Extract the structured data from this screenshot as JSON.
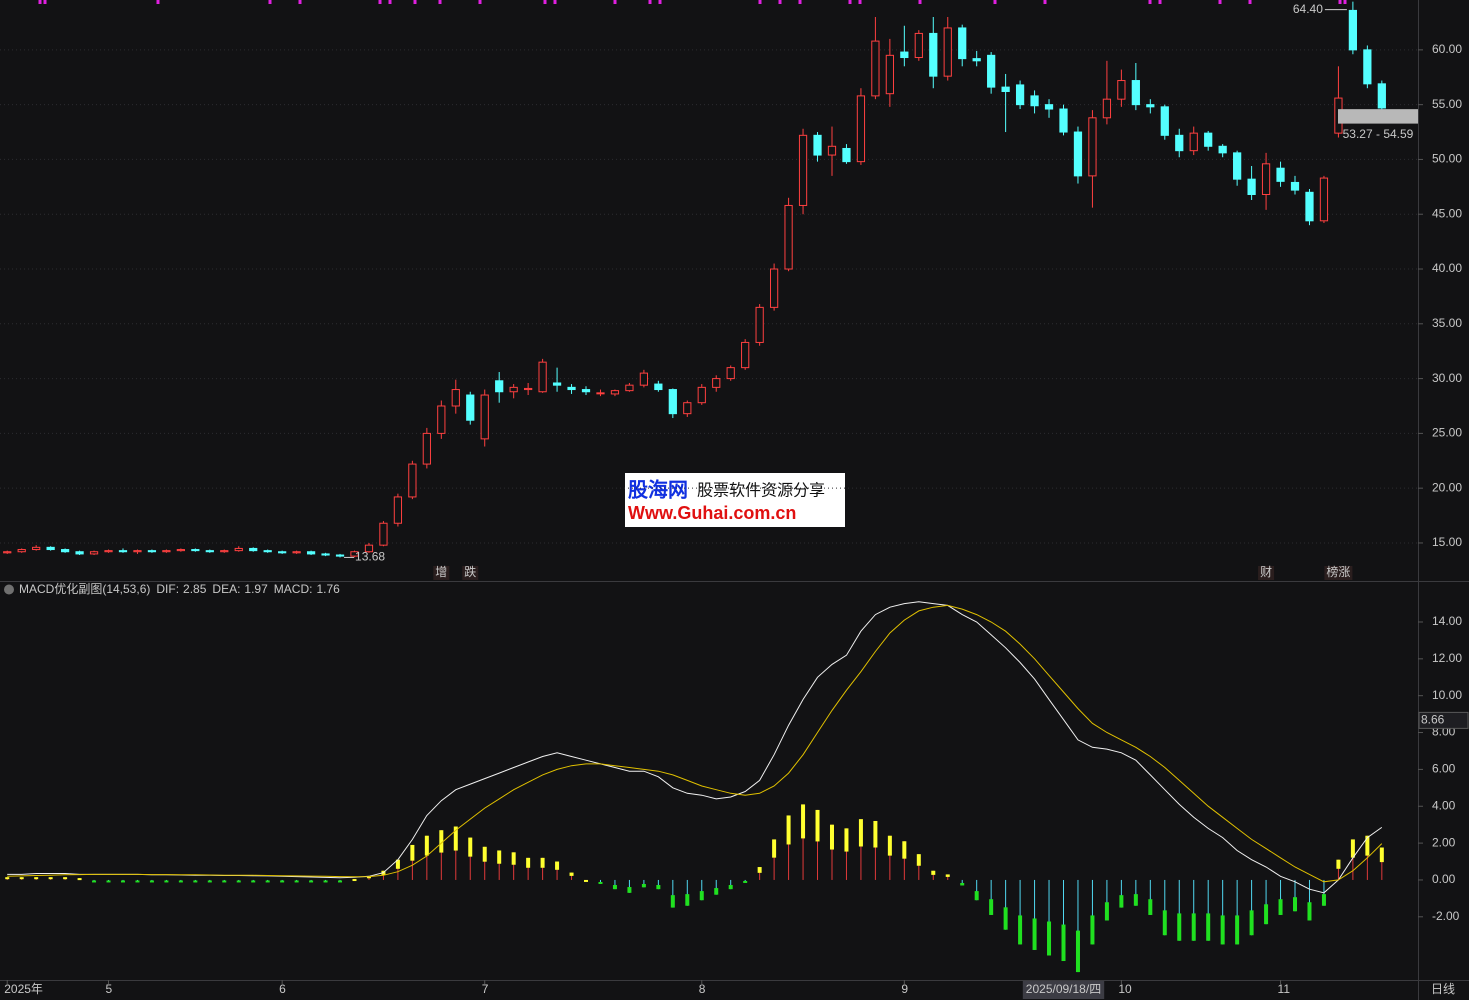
{
  "chart_data": [
    {
      "type": "candlestick",
      "xlim": [
        -0.5,
        97.5
      ],
      "ylim": [
        11.62,
        64.55
      ],
      "yticks": [
        {
          "value": 15,
          "label": "15.00"
        },
        {
          "value": 20,
          "label": "20.00"
        },
        {
          "value": 25,
          "label": "25.00"
        },
        {
          "value": 30,
          "label": "30.00"
        },
        {
          "value": 35,
          "label": "35.00"
        },
        {
          "value": 40,
          "label": "40.00"
        },
        {
          "value": 45,
          "label": "45.00"
        },
        {
          "value": 50,
          "label": "50.00"
        },
        {
          "value": 55,
          "label": "55.00"
        },
        {
          "value": 60,
          "label": "60.00"
        }
      ],
      "grid": true,
      "up_color": "#ff4040",
      "down_color": "#54ffff",
      "open": [
        14.1,
        14.2,
        14.4,
        14.6,
        14.4,
        14.2,
        14.0,
        14.2,
        14.3,
        14.2,
        14.3,
        14.2,
        14.3,
        14.4,
        14.3,
        14.2,
        14.3,
        14.5,
        14.3,
        14.2,
        14.1,
        14.2,
        14.0,
        13.9,
        13.8,
        14.2,
        14.8,
        16.8,
        19.2,
        22.2,
        25.0,
        27.5,
        28.5,
        24.5,
        29.8,
        28.8,
        29.0,
        28.8,
        29.6,
        29.2,
        29.0,
        28.7,
        28.6,
        28.9,
        29.4,
        29.5,
        29.0,
        26.8,
        27.8,
        29.2,
        30.0,
        31.0,
        33.3,
        36.5,
        40.0,
        45.8,
        52.2,
        50.4,
        51.0,
        49.8,
        55.8,
        56.0,
        59.8,
        59.3,
        61.5,
        57.6,
        62.0,
        59.2,
        59.5,
        56.6,
        56.8,
        55.8,
        55.0,
        54.6,
        52.5,
        48.5,
        53.8,
        55.5,
        57.2,
        55.0,
        54.8,
        52.2,
        50.8,
        52.4,
        51.2,
        50.6,
        48.2,
        46.8,
        49.2,
        47.9,
        47.0,
        44.4,
        52.4,
        63.6,
        60.0,
        56.9
      ],
      "high": [
        14.3,
        14.5,
        14.8,
        14.7,
        14.5,
        14.3,
        14.3,
        14.4,
        14.5,
        14.4,
        14.4,
        14.4,
        14.5,
        14.5,
        14.4,
        14.4,
        14.7,
        14.6,
        14.4,
        14.3,
        14.3,
        14.3,
        14.1,
        14.0,
        14.3,
        15.0,
        17.0,
        19.5,
        22.5,
        25.5,
        28.0,
        29.9,
        28.8,
        29.0,
        30.6,
        29.5,
        29.6,
        31.8,
        31.0,
        29.5,
        29.3,
        29.0,
        29.0,
        29.6,
        30.8,
        29.8,
        29.1,
        28.0,
        29.5,
        30.3,
        31.2,
        33.6,
        36.8,
        40.5,
        46.5,
        52.8,
        52.5,
        53.0,
        51.4,
        56.5,
        63.0,
        61.0,
        62.2,
        61.8,
        63.0,
        63.0,
        62.3,
        59.9,
        59.8,
        57.8,
        57.2,
        56.3,
        55.5,
        55.0,
        53.0,
        54.5,
        59.0,
        58.2,
        58.8,
        55.5,
        55.0,
        52.8,
        53.0,
        52.6,
        51.4,
        50.8,
        49.4,
        50.6,
        49.8,
        48.5,
        47.3,
        48.5,
        58.5,
        64.4,
        60.4,
        57.2
      ],
      "low": [
        14.0,
        14.1,
        14.3,
        14.3,
        14.1,
        13.9,
        13.9,
        14.1,
        14.1,
        14.0,
        14.1,
        14.1,
        14.2,
        14.2,
        14.1,
        14.1,
        14.2,
        14.2,
        14.1,
        14.0,
        14.0,
        13.9,
        13.8,
        13.68,
        13.7,
        14.1,
        14.7,
        16.5,
        19.0,
        21.8,
        24.5,
        26.8,
        25.8,
        23.8,
        27.8,
        28.2,
        28.5,
        28.7,
        28.8,
        28.6,
        28.5,
        28.4,
        28.4,
        28.8,
        29.2,
        28.8,
        26.4,
        26.5,
        27.6,
        28.8,
        29.8,
        30.8,
        33.0,
        36.2,
        39.8,
        45.0,
        49.8,
        48.5,
        49.6,
        49.5,
        55.5,
        54.8,
        58.5,
        59.0,
        56.5,
        57.2,
        58.5,
        58.5,
        56.0,
        52.5,
        54.6,
        54.2,
        53.8,
        52.2,
        47.8,
        45.6,
        53.2,
        54.8,
        54.5,
        54.2,
        51.8,
        50.2,
        50.4,
        50.8,
        50.2,
        47.6,
        46.3,
        45.4,
        47.5,
        46.8,
        44.0,
        44.2,
        52.0,
        59.6,
        56.5,
        54.5
      ],
      "close": [
        14.2,
        14.4,
        14.6,
        14.4,
        14.2,
        14.0,
        14.2,
        14.3,
        14.2,
        14.3,
        14.2,
        14.3,
        14.4,
        14.3,
        14.2,
        14.3,
        14.5,
        14.3,
        14.2,
        14.1,
        14.2,
        14.0,
        13.9,
        13.8,
        14.2,
        14.8,
        16.8,
        19.2,
        22.2,
        25.0,
        27.5,
        29.0,
        26.2,
        28.5,
        28.8,
        29.2,
        29.1,
        31.5,
        29.4,
        29.0,
        28.8,
        28.7,
        28.9,
        29.4,
        30.5,
        29.0,
        26.8,
        27.8,
        29.2,
        30.0,
        31.0,
        33.3,
        36.5,
        40.0,
        45.8,
        52.2,
        50.4,
        51.2,
        49.8,
        55.8,
        60.8,
        59.5,
        59.3,
        61.5,
        57.6,
        62.0,
        59.2,
        59.0,
        56.6,
        56.2,
        55.0,
        54.9,
        54.6,
        52.5,
        48.5,
        53.8,
        55.5,
        57.2,
        55.0,
        54.8,
        52.2,
        50.8,
        52.4,
        51.2,
        50.6,
        48.2,
        46.8,
        49.6,
        48.0,
        47.2,
        44.4,
        48.3,
        55.6,
        60.0,
        56.9,
        54.7
      ],
      "annotations": [
        {
          "x": 93,
          "value": 64.4,
          "label": "64.40"
        },
        {
          "x": 23,
          "value": 13.68,
          "label": "13.68"
        }
      ],
      "range_box": {
        "low": 53.27,
        "high": 54.59,
        "label": "53.27 - 54.59"
      },
      "tags": [
        {
          "x": 30,
          "text": "增",
          "color": "#ff5050"
        },
        {
          "x": 32,
          "text": "跌",
          "color": "#40e040"
        },
        {
          "x": 87,
          "text": "财",
          "color": "#4aa0ff"
        },
        {
          "x": 92,
          "text": "榜涨",
          "color": "#ff7a30"
        }
      ]
    },
    {
      "type": "macd",
      "title": "MACD优化副图(14,53,6)",
      "xlim": [
        -0.5,
        97.5
      ],
      "ylim": [
        -5.43,
        16.17
      ],
      "yticks": [
        {
          "value": -2,
          "label": "-2.00"
        },
        {
          "value": 0,
          "label": "0.00"
        },
        {
          "value": 2,
          "label": "2.00"
        },
        {
          "value": 4,
          "label": "4.00"
        },
        {
          "value": 6,
          "label": "6.00"
        },
        {
          "value": 8,
          "label": "8.00"
        },
        {
          "value": 10,
          "label": "10.00"
        },
        {
          "value": 12,
          "label": "12.00"
        },
        {
          "value": 14,
          "label": "14.00"
        }
      ],
      "series": [
        {
          "name": "DIF:",
          "current": 2.85,
          "color": "#f0f0f0",
          "style": "line",
          "values": [
            0.3,
            0.3,
            0.35,
            0.35,
            0.35,
            0.3,
            0.3,
            0.3,
            0.3,
            0.3,
            0.28,
            0.28,
            0.27,
            0.26,
            0.25,
            0.24,
            0.24,
            0.23,
            0.22,
            0.2,
            0.18,
            0.16,
            0.14,
            0.12,
            0.15,
            0.2,
            0.4,
            1.1,
            2.2,
            3.5,
            4.3,
            4.9,
            5.2,
            5.5,
            5.8,
            6.1,
            6.4,
            6.7,
            6.9,
            6.7,
            6.5,
            6.3,
            6.1,
            5.9,
            5.9,
            5.6,
            5.0,
            4.7,
            4.6,
            4.4,
            4.5,
            4.8,
            5.4,
            6.8,
            8.4,
            9.8,
            11.0,
            11.7,
            12.2,
            13.5,
            14.4,
            14.8,
            15.0,
            15.1,
            15.0,
            14.9,
            14.4,
            14.0,
            13.3,
            12.6,
            11.8,
            10.9,
            9.8,
            8.7,
            7.6,
            7.2,
            7.1,
            6.9,
            6.5,
            5.7,
            4.9,
            4.1,
            3.4,
            2.8,
            2.3,
            1.6,
            1.1,
            0.7,
            0.2,
            -0.1,
            -0.5,
            -0.7,
            0.0,
            1.2,
            2.3,
            2.85
          ]
        },
        {
          "name": "DEA:",
          "current": 1.97,
          "color": "#e0c000",
          "style": "line",
          "values": [
            0.2,
            0.22,
            0.24,
            0.26,
            0.28,
            0.29,
            0.3,
            0.3,
            0.3,
            0.3,
            0.29,
            0.29,
            0.28,
            0.28,
            0.27,
            0.26,
            0.26,
            0.25,
            0.24,
            0.23,
            0.22,
            0.21,
            0.2,
            0.18,
            0.17,
            0.18,
            0.25,
            0.45,
            0.8,
            1.3,
            2.0,
            2.7,
            3.3,
            3.9,
            4.4,
            4.9,
            5.3,
            5.7,
            6.0,
            6.2,
            6.3,
            6.3,
            6.2,
            6.1,
            6.0,
            5.9,
            5.7,
            5.4,
            5.1,
            4.9,
            4.7,
            4.6,
            4.7,
            5.1,
            5.8,
            6.8,
            8.0,
            9.2,
            10.3,
            11.3,
            12.4,
            13.4,
            14.1,
            14.6,
            14.8,
            14.9,
            14.7,
            14.4,
            14.0,
            13.5,
            12.8,
            12.0,
            11.1,
            10.2,
            9.3,
            8.5,
            8.0,
            7.6,
            7.2,
            6.7,
            6.1,
            5.4,
            4.7,
            4.0,
            3.4,
            2.8,
            2.2,
            1.7,
            1.2,
            0.7,
            0.3,
            -0.1,
            0.0,
            0.5,
            1.2,
            1.97
          ]
        },
        {
          "name": "MACD:",
          "current": 1.76,
          "color": "#d040d0",
          "style": "histogram",
          "bar_colors": {
            "up": "#e03a3a",
            "up_tip": "#ffff30",
            "down": "#50d8f0",
            "down_tip": "#20e020"
          },
          "values": [
            0.15,
            0.15,
            0.15,
            0.15,
            0.15,
            0.1,
            -0.05,
            -0.05,
            -0.05,
            -0.05,
            -0.05,
            -0.05,
            -0.05,
            -0.05,
            -0.05,
            -0.05,
            -0.05,
            -0.05,
            -0.05,
            -0.05,
            -0.05,
            -0.05,
            -0.05,
            -0.05,
            0.05,
            0.2,
            0.5,
            1.1,
            1.9,
            2.4,
            2.7,
            2.9,
            2.3,
            1.8,
            1.6,
            1.5,
            1.2,
            1.2,
            1.0,
            0.4,
            0.0,
            -0.2,
            -0.5,
            -0.7,
            -0.4,
            -0.5,
            -1.5,
            -1.4,
            -1.1,
            -0.8,
            -0.5,
            -0.1,
            0.7,
            2.2,
            3.5,
            4.1,
            3.8,
            3.0,
            2.8,
            3.3,
            3.2,
            2.4,
            2.1,
            1.4,
            0.5,
            0.3,
            -0.3,
            -1.1,
            -1.9,
            -2.7,
            -3.5,
            -3.8,
            -4.1,
            -4.4,
            -5.0,
            -3.5,
            -2.2,
            -1.5,
            -1.4,
            -1.9,
            -3.0,
            -3.3,
            -3.3,
            -3.3,
            -3.5,
            -3.5,
            -3.0,
            -2.4,
            -1.9,
            -1.7,
            -2.2,
            -1.4,
            1.1,
            2.2,
            2.4,
            1.76
          ]
        }
      ],
      "cursor_value": 8.66,
      "xticks": [
        {
          "value": 0,
          "label": "2025年"
        },
        {
          "value": 7,
          "label": "5"
        },
        {
          "value": 19,
          "label": "6"
        },
        {
          "value": 33,
          "label": "7"
        },
        {
          "value": 48,
          "label": "8"
        },
        {
          "value": 62,
          "label": "9"
        },
        {
          "value": 77,
          "label": "10"
        },
        {
          "value": 88,
          "label": "11"
        }
      ],
      "date_cursor": {
        "value": 73,
        "label": "2025/09/18/四"
      },
      "period_label": "日线"
    }
  ],
  "watermark": {
    "brand": "股海网",
    "slogan": "股票软件资源分享",
    "url": "Www.Guhai.com.cn"
  }
}
